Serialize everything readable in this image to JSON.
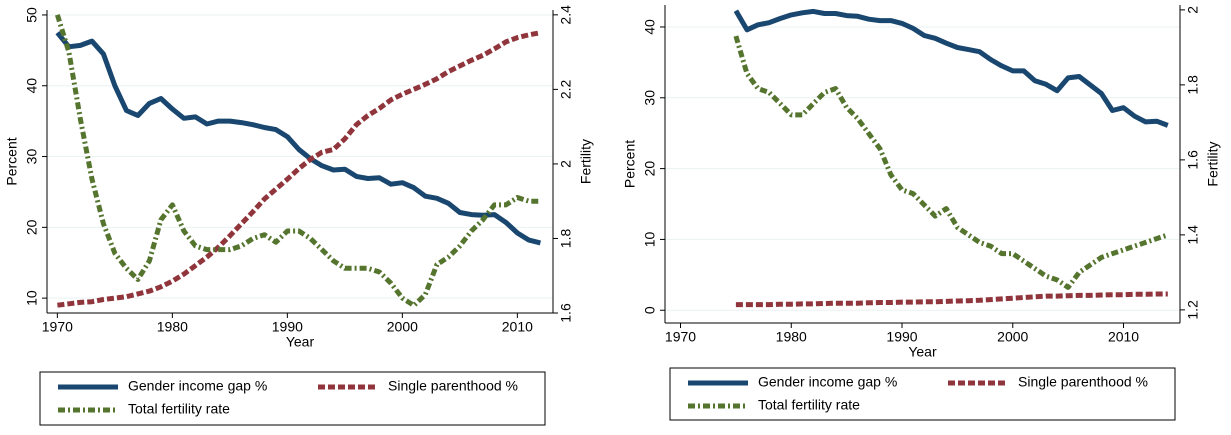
{
  "chart_data": [
    {
      "type": "line",
      "xlabel": "Year",
      "ylabel": "Percent",
      "y2label": "Fertility",
      "x": [
        1970,
        1971,
        1972,
        1973,
        1974,
        1975,
        1976,
        1977,
        1978,
        1979,
        1980,
        1981,
        1982,
        1983,
        1984,
        1985,
        1986,
        1987,
        1988,
        1989,
        1990,
        1991,
        1992,
        1993,
        1994,
        1995,
        1996,
        1997,
        1998,
        1999,
        2000,
        2001,
        2002,
        2003,
        2004,
        2005,
        2006,
        2007,
        2008,
        2009,
        2010,
        2011,
        2012
      ],
      "xlim": [
        1969.1,
        2013.1
      ],
      "xticks": [
        1970,
        1980,
        1990,
        2000,
        2010
      ],
      "ylim": [
        7.9,
        50.7
      ],
      "yticks": [
        10,
        20,
        30,
        40,
        50
      ],
      "y2lim": [
        1.6,
        2.413
      ],
      "y2ticks": [
        1.6,
        1.8,
        2,
        2.2,
        2.4
      ],
      "grid": true,
      "series": [
        {
          "name": "Gender income gap %",
          "color": "#1a476f",
          "style": "solid",
          "values": [
            47.5,
            45.5,
            45.7,
            46.3,
            44.5,
            40,
            36.5,
            35.8,
            37.5,
            38.2,
            36.7,
            35.4,
            35.6,
            34.6,
            35,
            35,
            34.8,
            34.5,
            34.1,
            33.8,
            32.8,
            31,
            29.7,
            28.7,
            28.1,
            28.2,
            27.2,
            26.9,
            27,
            26.1,
            26.3,
            25.6,
            24.4,
            24.1,
            23.4,
            22.1,
            21.8,
            21.7,
            21.8,
            20.7,
            19.2,
            18.2,
            17.8
          ]
        },
        {
          "name": "Single parenthood %",
          "color": "#90353b",
          "style": "dash",
          "values": [
            9,
            9.2,
            9.4,
            9.5,
            9.8,
            10,
            10.2,
            10.6,
            11,
            11.6,
            12.4,
            13.4,
            14.6,
            15.8,
            17.2,
            18.8,
            20.5,
            22.2,
            24,
            25.4,
            26.8,
            28.3,
            29.6,
            30.6,
            31,
            32.5,
            34.5,
            35.8,
            36.8,
            38,
            38.8,
            39.5,
            40.2,
            41,
            42,
            42.8,
            43.6,
            44.3,
            45.2,
            46.2,
            46.8,
            47.2,
            47.5
          ]
        },
        {
          "name": "Total fertility rate",
          "color": "#55752f",
          "style": "dashdot",
          "axis": "y2",
          "values": [
            2.4,
            2.3,
            2.12,
            1.96,
            1.84,
            1.76,
            1.72,
            1.69,
            1.74,
            1.85,
            1.89,
            1.82,
            1.78,
            1.77,
            1.77,
            1.77,
            1.78,
            1.8,
            1.81,
            1.79,
            1.82,
            1.82,
            1.8,
            1.77,
            1.74,
            1.72,
            1.72,
            1.72,
            1.71,
            1.68,
            1.64,
            1.62,
            1.65,
            1.73,
            1.75,
            1.78,
            1.82,
            1.85,
            1.89,
            1.89,
            1.91,
            1.9,
            1.9
          ]
        }
      ]
    },
    {
      "type": "line",
      "xlabel": "Year",
      "ylabel": "Percent",
      "y2label": "Fertility",
      "x": [
        1975,
        1976,
        1977,
        1978,
        1979,
        1980,
        1981,
        1982,
        1983,
        1984,
        1985,
        1986,
        1987,
        1988,
        1989,
        1990,
        1991,
        1992,
        1993,
        1994,
        1995,
        1996,
        1997,
        1998,
        1999,
        2000,
        2001,
        2002,
        2003,
        2004,
        2005,
        2006,
        2007,
        2008,
        2009,
        2010,
        2011,
        2012,
        2013,
        2014
      ],
      "xlim": [
        1968.6,
        2015.1
      ],
      "xticks": [
        1970,
        1980,
        1990,
        2000,
        2010
      ],
      "ylim": [
        -1.8,
        43.1
      ],
      "yticks": [
        0,
        10,
        20,
        30,
        40
      ],
      "y2lim": [
        1.165,
        2.013
      ],
      "y2ticks": [
        1.2,
        1.4,
        1.6,
        1.8,
        2
      ],
      "grid": true,
      "series": [
        {
          "name": "Gender income gap %",
          "color": "#1a476f",
          "style": "solid",
          "values": [
            42.3,
            39.6,
            40.3,
            40.6,
            41.2,
            41.7,
            42,
            42.2,
            41.9,
            41.9,
            41.6,
            41.5,
            41.1,
            40.9,
            40.9,
            40.5,
            39.8,
            38.8,
            38.4,
            37.7,
            37.1,
            36.8,
            36.5,
            35.4,
            34.5,
            33.8,
            33.8,
            32.4,
            31.9,
            31,
            32.8,
            33,
            31.8,
            30.6,
            28.2,
            28.6,
            27.4,
            26.6,
            26.7,
            26.1
          ]
        },
        {
          "name": "Single parenthood %",
          "color": "#90353b",
          "style": "dash",
          "values": [
            0.8,
            0.8,
            0.8,
            0.8,
            0.85,
            0.85,
            0.9,
            0.9,
            0.95,
            1,
            1,
            1,
            1.05,
            1.1,
            1.1,
            1.15,
            1.15,
            1.2,
            1.2,
            1.25,
            1.3,
            1.35,
            1.4,
            1.5,
            1.6,
            1.7,
            1.8,
            1.9,
            2,
            2,
            2.05,
            2.1,
            2.1,
            2.15,
            2.2,
            2.2,
            2.25,
            2.25,
            2.3,
            2.3
          ]
        },
        {
          "name": "Total fertility rate",
          "color": "#55752f",
          "style": "dashdot",
          "axis": "y2",
          "values": [
            1.93,
            1.83,
            1.79,
            1.78,
            1.75,
            1.72,
            1.72,
            1.75,
            1.78,
            1.79,
            1.74,
            1.71,
            1.67,
            1.63,
            1.56,
            1.52,
            1.51,
            1.48,
            1.45,
            1.47,
            1.42,
            1.4,
            1.38,
            1.37,
            1.35,
            1.35,
            1.33,
            1.31,
            1.29,
            1.28,
            1.26,
            1.3,
            1.32,
            1.34,
            1.35,
            1.36,
            1.37,
            1.38,
            1.39,
            1.4
          ]
        }
      ]
    }
  ]
}
